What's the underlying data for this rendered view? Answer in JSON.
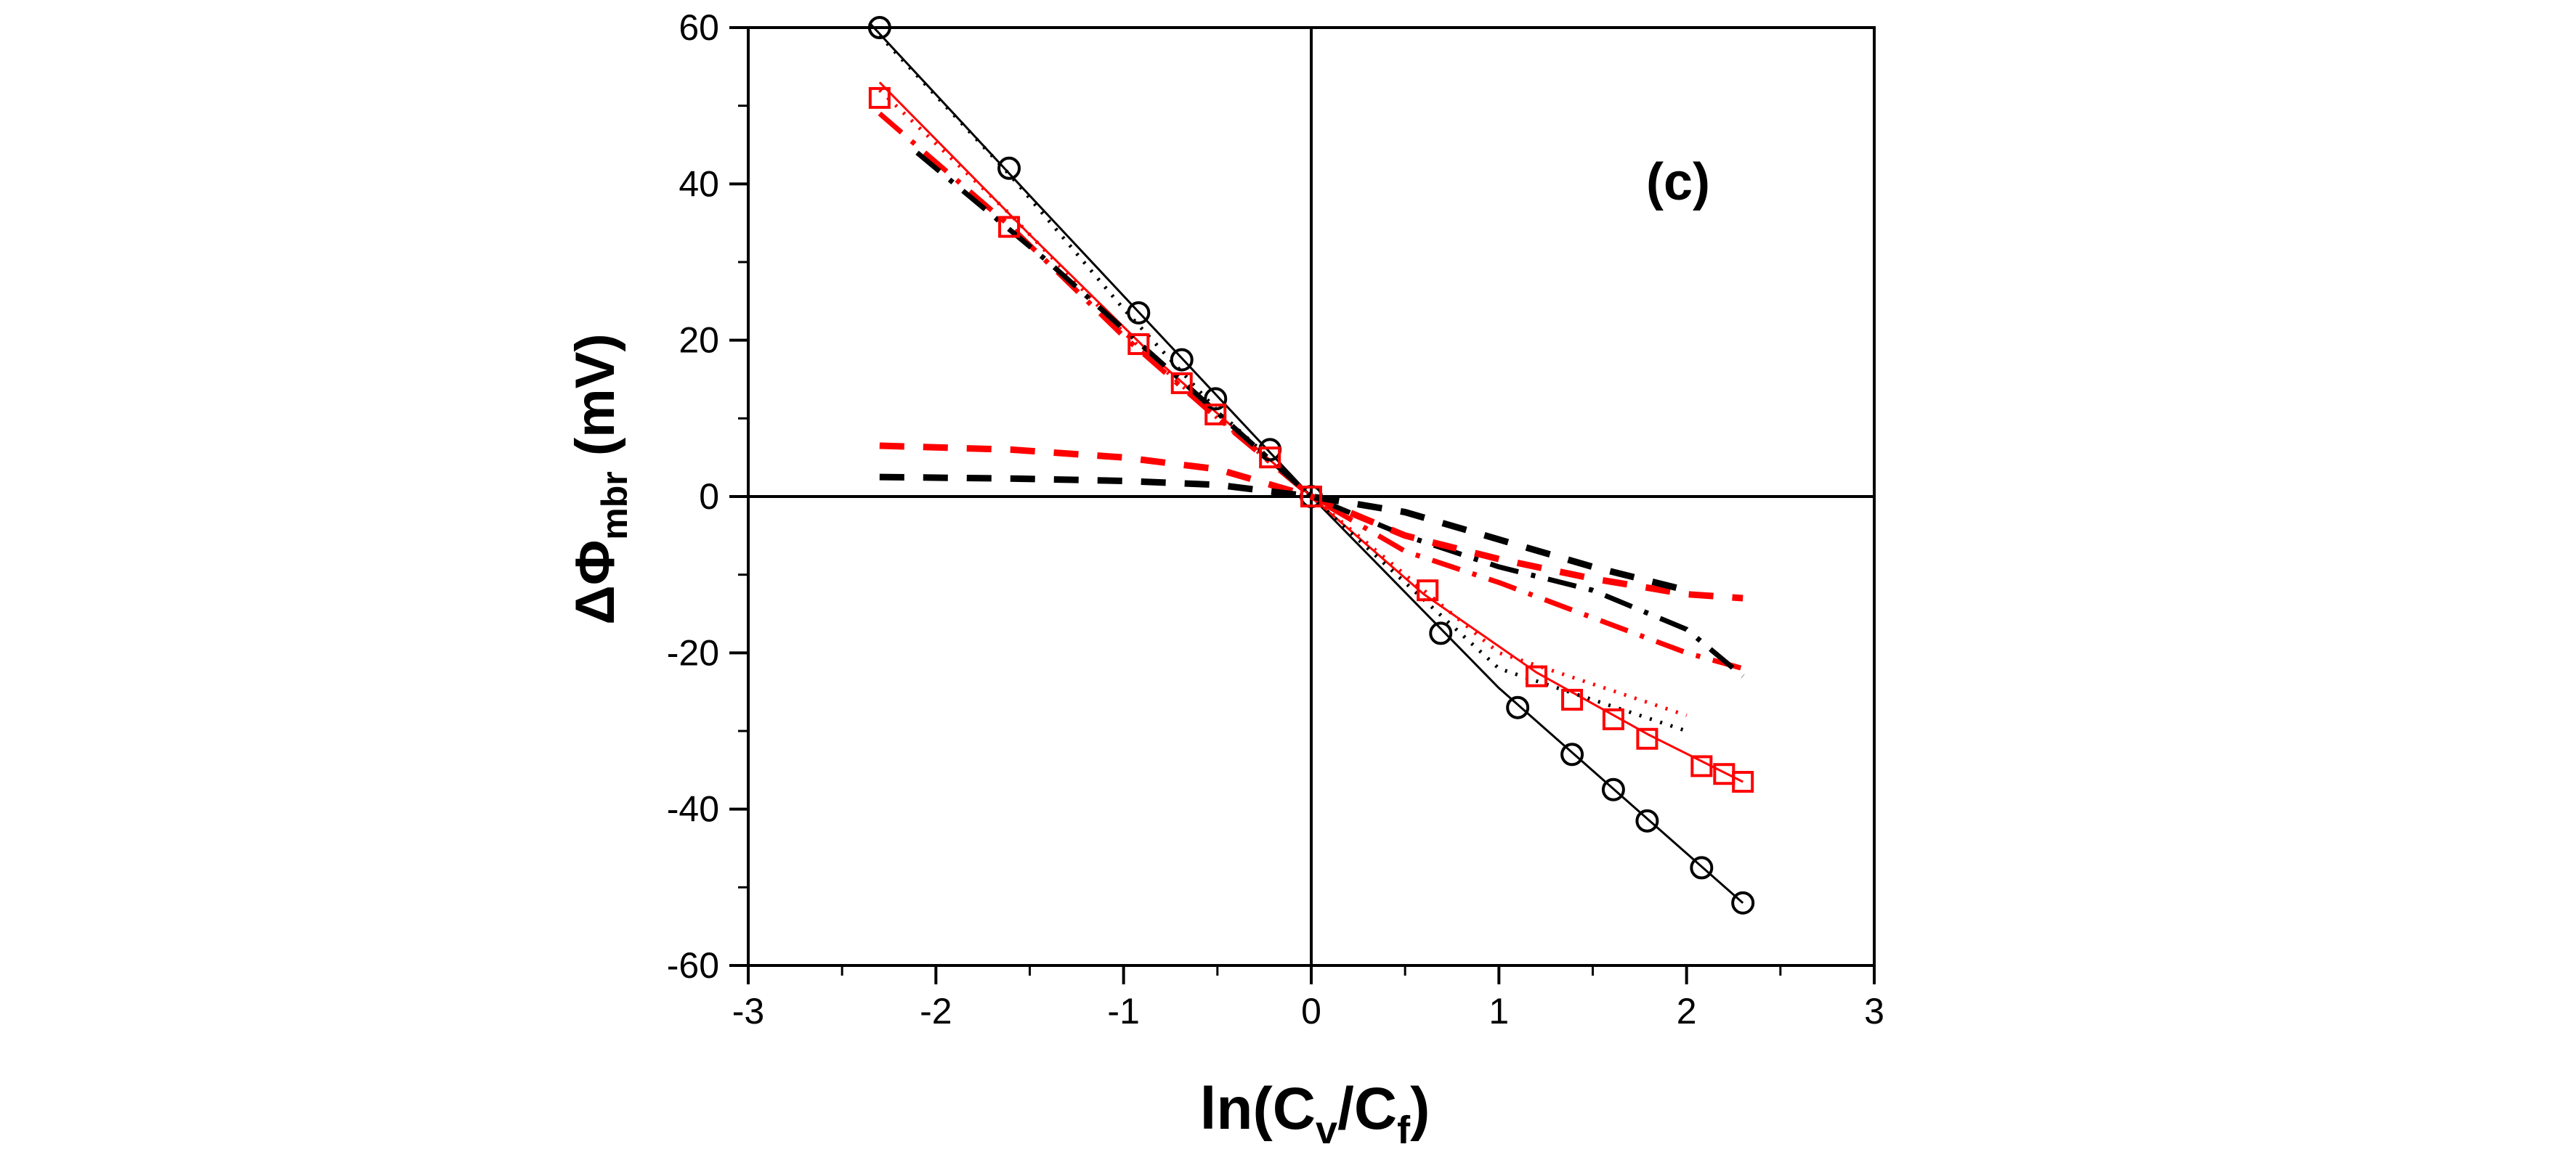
{
  "chart_data": {
    "type": "line",
    "panel_label": "(c)",
    "xlabel": {
      "base": "ln(C",
      "sub1": "v",
      "mid": "/C",
      "sub2": "f",
      "end": ")"
    },
    "ylabel": {
      "base": "ΔΦ",
      "sub": "mbr",
      "unit": " (mV)"
    },
    "xlim": [
      -3,
      3
    ],
    "ylim": [
      -60,
      60
    ],
    "xticks": [
      -3,
      -2,
      -1,
      0,
      1,
      2,
      3
    ],
    "yticks": [
      -60,
      -40,
      -20,
      0,
      20,
      40,
      60
    ],
    "xtick_labels": [
      "-3",
      "-2",
      "-1",
      "0",
      "1",
      "2",
      "3"
    ],
    "ytick_labels": [
      "-60",
      "-40",
      "-20",
      "0",
      "20",
      "40",
      "60"
    ],
    "zero_lines": true,
    "colors": {
      "black": "#000000",
      "red": "#ff0000"
    },
    "series": [
      {
        "name": "circles-data",
        "color": "#000000",
        "marker": "circle",
        "line": "none",
        "x": [
          -2.3,
          -1.61,
          -0.92,
          -0.69,
          -0.51,
          -0.22,
          0.0,
          0.69,
          1.1,
          1.39,
          1.61,
          1.79,
          2.08,
          2.3
        ],
        "y": [
          60,
          42,
          23.5,
          17.5,
          12.5,
          6,
          0,
          -17.5,
          -27,
          -33,
          -37.5,
          -41.5,
          -47.5,
          -52
        ]
      },
      {
        "name": "squares-data",
        "color": "#ff0000",
        "marker": "square",
        "line": "none",
        "x": [
          -2.3,
          -1.61,
          -0.92,
          -0.69,
          -0.51,
          -0.22,
          0.0,
          0.62,
          1.2,
          1.39,
          1.61,
          1.79,
          2.08,
          2.2,
          2.3
        ],
        "y": [
          51,
          34.5,
          19.5,
          14.5,
          10.5,
          5,
          0,
          -12,
          -23,
          -26,
          -28.5,
          -31,
          -34.5,
          -35.5,
          -36.5
        ]
      },
      {
        "name": "black-solid-fit",
        "color": "#000000",
        "marker": "none",
        "line": "solid",
        "x": [
          -2.35,
          -1.5,
          0,
          1.0,
          2.3
        ],
        "y": [
          60.5,
          38.5,
          0,
          -24.5,
          -52
        ]
      },
      {
        "name": "red-solid-fit",
        "color": "#ff0000",
        "marker": "none",
        "line": "solid",
        "x": [
          -2.3,
          -1.5,
          -0.8,
          0,
          0.6,
          1.2,
          1.8,
          2.3
        ],
        "y": [
          53,
          33.5,
          17,
          0,
          -12.5,
          -22.5,
          -30.5,
          -36.5
        ]
      },
      {
        "name": "black-dotted",
        "color": "#000000",
        "marker": "none",
        "line": "dot",
        "x": [
          -2.3,
          -1.6,
          -1.0,
          -0.5,
          0,
          1.0,
          2.0
        ],
        "y": [
          59,
          41,
          24,
          11,
          0,
          -22,
          -30
        ]
      },
      {
        "name": "red-dotted",
        "color": "#ff0000",
        "marker": "none",
        "line": "dot",
        "x": [
          -2.3,
          -1.6,
          -1.0,
          -0.5,
          0,
          1.0,
          2.0
        ],
        "y": [
          52,
          36,
          21,
          10,
          0,
          -20,
          -28
        ]
      },
      {
        "name": "red-dash-dot",
        "color": "#ff0000",
        "marker": "none",
        "line": "dashdot",
        "x": [
          -2.3,
          -1.6,
          -1.0,
          -0.5,
          0,
          0.5,
          1.0,
          1.5,
          2.0,
          2.3
        ],
        "y": [
          49,
          34.5,
          20.5,
          10,
          0,
          -7,
          -11,
          -15.5,
          -20,
          -22
        ]
      },
      {
        "name": "black-dash-dot",
        "color": "#000000",
        "marker": "none",
        "line": "dashdot",
        "x": [
          -2.1,
          -1.4,
          -0.7,
          0,
          0.5,
          1.0,
          1.5,
          2.0,
          2.3
        ],
        "y": [
          44,
          30,
          15,
          0,
          -5,
          -9,
          -12,
          -17,
          -23
        ]
      },
      {
        "name": "red-dashed",
        "color": "#ff0000",
        "marker": "none",
        "line": "dash",
        "x": [
          -2.3,
          -1.6,
          -1.0,
          -0.5,
          0,
          0.5,
          1.0,
          1.5,
          2.0,
          2.3
        ],
        "y": [
          6.5,
          6,
          5,
          3.5,
          0,
          -5,
          -8,
          -10.5,
          -12.5,
          -13
        ]
      },
      {
        "name": "black-dashed",
        "color": "#000000",
        "marker": "none",
        "line": "dash",
        "x": [
          -2.3,
          -1.6,
          -1.0,
          -0.5,
          0,
          0.5,
          1.0,
          1.5,
          2.0
        ],
        "y": [
          2.5,
          2.3,
          2,
          1.5,
          0,
          -2,
          -5.5,
          -9,
          -12
        ]
      }
    ]
  }
}
